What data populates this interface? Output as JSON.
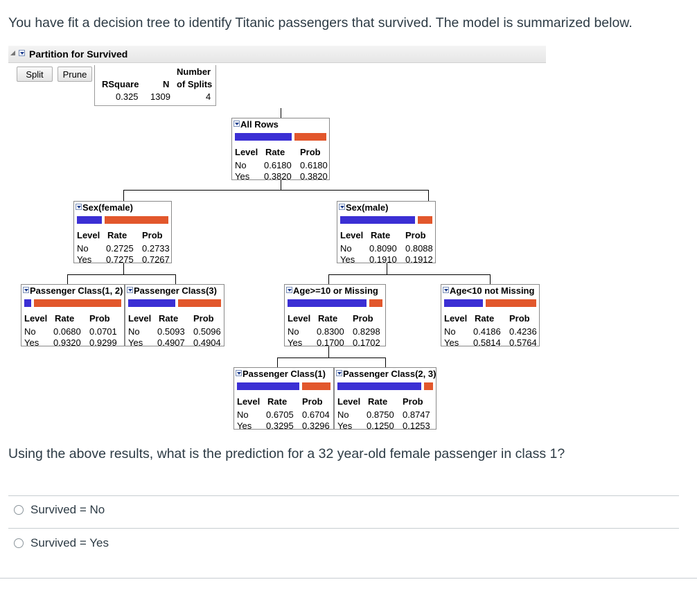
{
  "intro_text": "You have fit a decision tree to identify Titanic passengers that survived. The model is summarized below.",
  "panel": {
    "title": "Partition for Survived",
    "split_label": "Split",
    "prune_label": "Prune",
    "summary": {
      "headers": [
        "RSquare",
        "N",
        "Number of Splits"
      ],
      "number_label": "Number",
      "n_label": "N",
      "of_splits_label": "of Splits",
      "rsquare_label": "RSquare",
      "rsquare": "0.325",
      "n": "1309",
      "splits": "4"
    }
  },
  "table_headers": {
    "level": "Level",
    "rate": "Rate",
    "prob": "Prob"
  },
  "nodes": {
    "all_rows": {
      "title": "All Rows",
      "no": [
        "No",
        "0.6180",
        "0.6180"
      ],
      "yes": [
        "Yes",
        "0.3820",
        "0.3820"
      ],
      "no_share": 0.618
    },
    "sex_female": {
      "title": "Sex(female)",
      "no": [
        "No",
        "0.2725",
        "0.2733"
      ],
      "yes": [
        "Yes",
        "0.7275",
        "0.7267"
      ],
      "no_share": 0.273
    },
    "sex_male": {
      "title": "Sex(male)",
      "no": [
        "No",
        "0.8090",
        "0.8088"
      ],
      "yes": [
        "Yes",
        "0.1910",
        "0.1912"
      ],
      "no_share": 0.809
    },
    "pclass_12": {
      "title": "Passenger Class(1, 2)",
      "no": [
        "No",
        "0.0680",
        "0.0701"
      ],
      "yes": [
        "Yes",
        "0.9320",
        "0.9299"
      ],
      "no_share": 0.07
    },
    "pclass_3": {
      "title": "Passenger Class(3)",
      "no": [
        "No",
        "0.5093",
        "0.5096"
      ],
      "yes": [
        "Yes",
        "0.4907",
        "0.4904"
      ],
      "no_share": 0.51
    },
    "age_ge10": {
      "title": "Age>=10 or Missing",
      "no": [
        "No",
        "0.8300",
        "0.8298"
      ],
      "yes": [
        "Yes",
        "0.1700",
        "0.1702"
      ],
      "no_share": 0.83
    },
    "age_lt10": {
      "title": "Age<10 not Missing",
      "no": [
        "No",
        "0.4186",
        "0.4236"
      ],
      "yes": [
        "Yes",
        "0.5814",
        "0.5764"
      ],
      "no_share": 0.42
    },
    "pclass_1": {
      "title": "Passenger Class(1)",
      "no": [
        "No",
        "0.6705",
        "0.6704"
      ],
      "yes": [
        "Yes",
        "0.3295",
        "0.3296"
      ],
      "no_share": 0.67
    },
    "pclass_23": {
      "title": "Passenger Class(2, 3)",
      "no": [
        "No",
        "0.8750",
        "0.8747"
      ],
      "yes": [
        "Yes",
        "0.1250",
        "0.1253"
      ],
      "no_share": 0.875
    }
  },
  "colors": {
    "no_bar": "#3b2fd4",
    "yes_bar": "#e2572c"
  },
  "question_text": "Using the above results, what is the prediction for a 32 year-old female passenger in class 1?",
  "options": [
    {
      "label": "Survived = No"
    },
    {
      "label": "Survived = Yes"
    }
  ]
}
